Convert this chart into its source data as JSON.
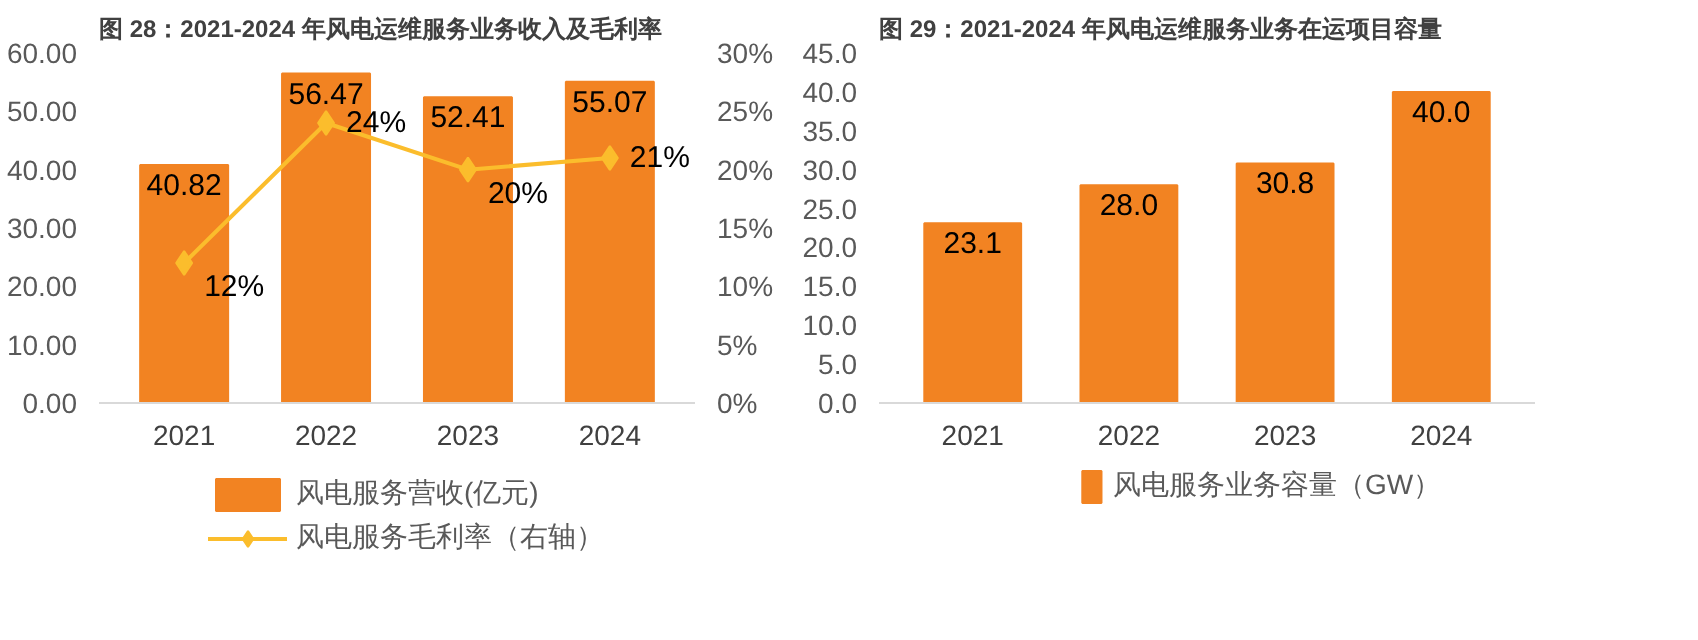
{
  "chart_data": [
    {
      "type": "bar",
      "title": "图 28：2021-2024 年风电运维服务业务收入及毛利率",
      "categories": [
        "2021",
        "2022",
        "2023",
        "2024"
      ],
      "series": [
        {
          "name": "风电服务营收(亿元)",
          "color": "#f28322",
          "values": [
            40.82,
            56.47,
            52.41,
            55.07
          ],
          "data_labels": true
        },
        {
          "name": "风电服务毛利率（右轴）",
          "type": "line",
          "axis": "y2",
          "color": "#fbbd2c",
          "marker": "diamond",
          "values": [
            12,
            24,
            20,
            21
          ],
          "value_labels": [
            "12%",
            "24%",
            "20%",
            "21%"
          ]
        }
      ],
      "ylim": [
        0,
        60
      ],
      "yticks": [
        {
          "value": 0,
          "label": "0.00"
        },
        {
          "value": 10,
          "label": "10.00"
        },
        {
          "value": 20,
          "label": "20.00"
        },
        {
          "value": 30,
          "label": "30.00"
        },
        {
          "value": 40,
          "label": "40.00"
        },
        {
          "value": 50,
          "label": "50.00"
        },
        {
          "value": 60,
          "label": "60.00"
        }
      ],
      "y2lim": [
        0,
        30
      ],
      "y2ticks": [
        {
          "value": 0,
          "label": "0%"
        },
        {
          "value": 5,
          "label": "5%"
        },
        {
          "value": 10,
          "label": "10%"
        },
        {
          "value": 15,
          "label": "15%"
        },
        {
          "value": 20,
          "label": "20%"
        },
        {
          "value": 25,
          "label": "25%"
        },
        {
          "value": 30,
          "label": "30%"
        }
      ],
      "legend": "bottom"
    },
    {
      "type": "bar",
      "title": "图 29：2021-2024 年风电运维服务业务在运项目容量",
      "categories": [
        "2021",
        "2022",
        "2023",
        "2024"
      ],
      "series": [
        {
          "name": "风电服务业务容量（GW）",
          "color": "#f28322",
          "values": [
            23.1,
            28.0,
            30.8,
            40.0
          ],
          "value_labels": [
            "23.1",
            "28.0",
            "30.8",
            "40.0"
          ]
        }
      ],
      "ylim": [
        0,
        45
      ],
      "yticks": [
        {
          "value": 0,
          "label": "0.0"
        },
        {
          "value": 5,
          "label": "5.0"
        },
        {
          "value": 10,
          "label": "10.0"
        },
        {
          "value": 15,
          "label": "15.0"
        },
        {
          "value": 20,
          "label": "20.0"
        },
        {
          "value": 25,
          "label": "25.0"
        },
        {
          "value": 30,
          "label": "30.0"
        },
        {
          "value": 35,
          "label": "35.0"
        },
        {
          "value": 40,
          "label": "40.0"
        },
        {
          "value": 45,
          "label": "45.0"
        }
      ],
      "legend": "bottom"
    }
  ]
}
